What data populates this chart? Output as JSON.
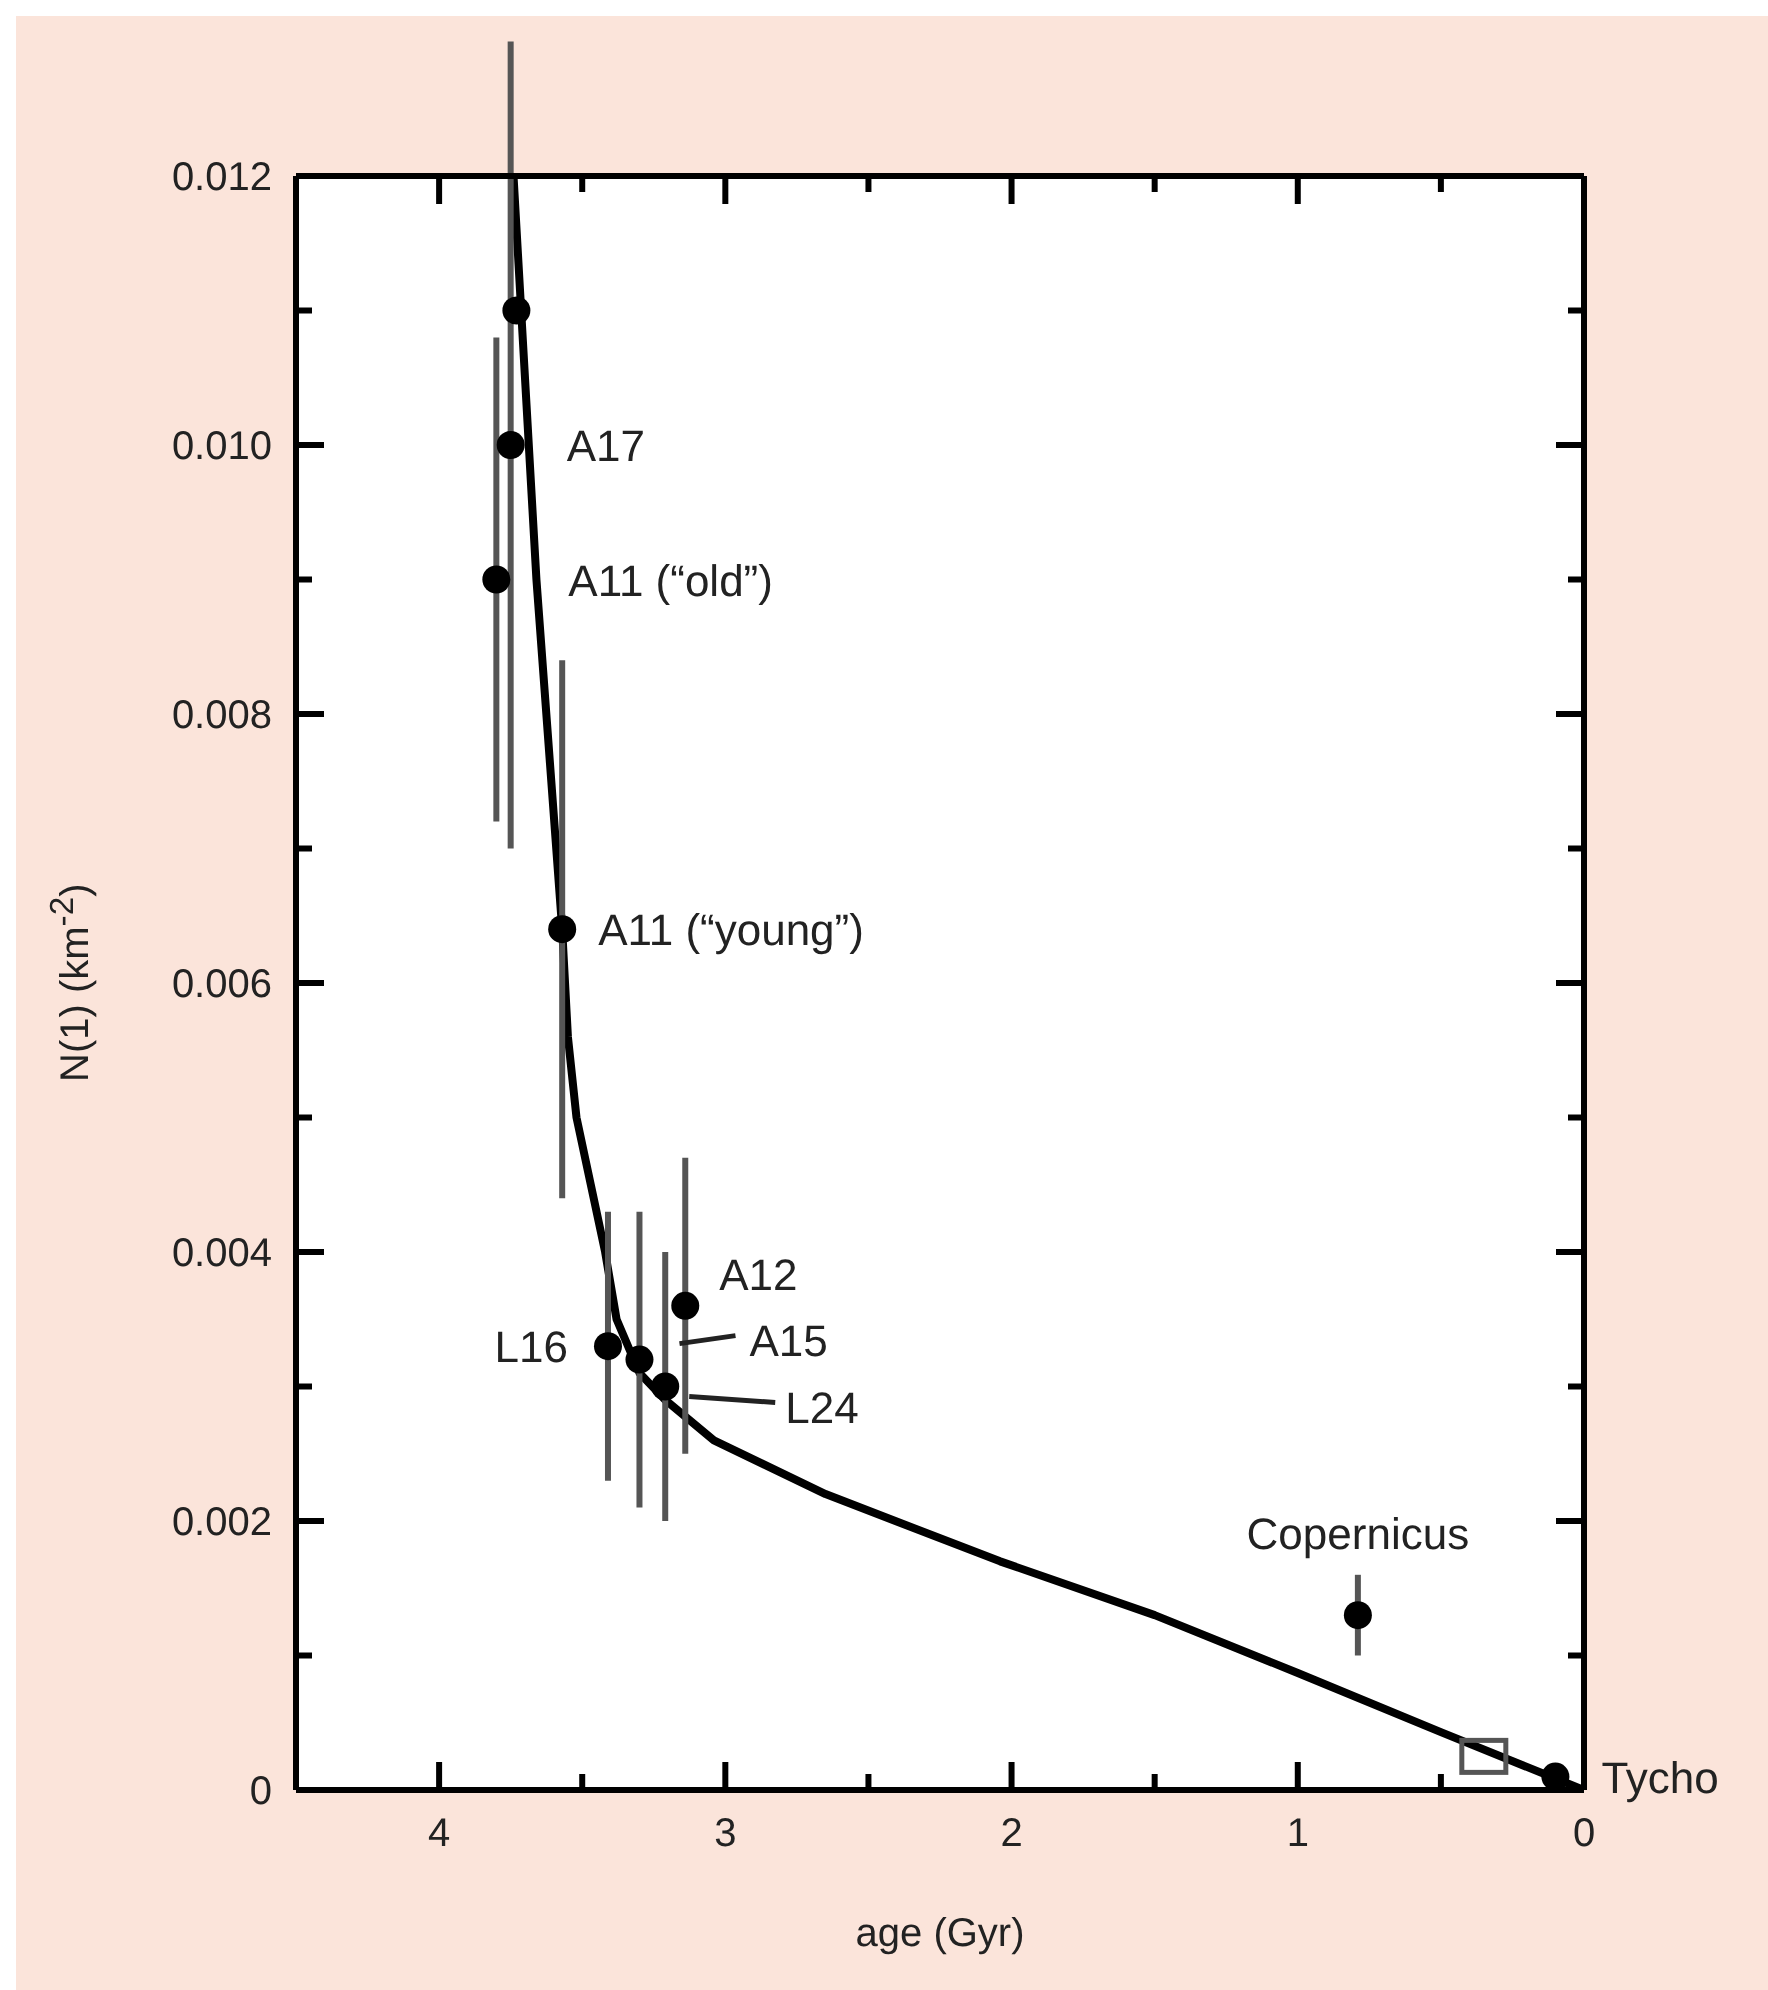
{
  "chart_data": {
    "type": "scatter",
    "xlabel": "age (Gyr)",
    "ylabel": "N(1) (km$^{-2}$)",
    "xlim": [
      4.5,
      0
    ],
    "xticks": [
      4,
      {
        "value": 3.5,
        "label": null
      },
      3,
      {
        "value": 2.5,
        "label": null
      },
      2,
      {
        "value": 1.5,
        "label": null
      },
      1,
      {
        "value": 0.5,
        "label": null
      },
      0
    ],
    "ylim": [
      0,
      0.012
    ],
    "yticks": [
      0,
      {
        "value": 0.001,
        "label": null
      },
      0.002,
      {
        "value": 0.003,
        "label": null
      },
      0.004,
      {
        "value": 0.005,
        "label": null
      },
      0.006,
      {
        "value": 0.007,
        "label": null
      },
      0.008,
      {
        "value": 0.009,
        "label": null
      },
      {
        "value": 0.01,
        "label": "0.010"
      },
      {
        "value": 0.011,
        "label": null
      },
      0.012
    ],
    "series": [
      {
        "type": "line",
        "color": "#000000",
        "marker": "none",
        "line_style": "solid",
        "x": [
          3.74,
          3.66,
          3.57,
          3.55,
          3.52,
          3.47,
          3.42,
          3.38,
          3.3,
          3.21,
          3.04,
          2.65,
          2.04,
          1.5,
          1,
          0.5,
          0
        ],
        "values": [
          0.012,
          0.009,
          0.0064,
          0.0056,
          0.005,
          0.0045,
          0.004,
          0.0035,
          0.0031,
          0.0029,
          0.0026,
          0.0022,
          0.0017,
          0.0013,
          0.00087,
          0.00043,
          0
        ]
      },
      {
        "color": "#000000",
        "marker": "circle",
        "x": [
          3.73,
          3.75,
          3.8,
          3.57,
          3.41,
          3.3,
          3.21,
          3.14,
          0.79,
          0.1
        ],
        "values": [
          0.011,
          0.01,
          0.009,
          0.0064,
          0.0033,
          0.0032,
          0.003,
          0.0036,
          0.0013,
          0.0001
        ],
        "errors": [
          null,
          0.003,
          0.0018,
          0.002,
          0.001,
          0.0011,
          0.001,
          0.0011,
          0.0003,
          null
        ]
      },
      {
        "color": "#555555",
        "marker": "square",
        "x": [
          0.35
        ],
        "values": [
          0.00025
        ]
      }
    ],
    "annotations": [
      {
        "text": "A17",
        "x": 3.75,
        "y": 0.01
      },
      {
        "text": "A11 (“old”)",
        "x": 3.8,
        "y": 0.009
      },
      {
        "text": "A11 (“young”)",
        "x": 3.57,
        "y": 0.0064
      },
      {
        "text": "A12",
        "x": 3.14,
        "y": 0.0036
      },
      {
        "text": "A15",
        "x": 3.3,
        "y": 0.0032
      },
      {
        "text": "L24",
        "x": 3.21,
        "y": 0.003
      },
      {
        "text": "L16",
        "x": 3.41,
        "y": 0.0033
      },
      {
        "text": "Copernicus",
        "x": 0.79,
        "y": 0.0013
      },
      {
        "text": "Tycho",
        "x": 0.1,
        "y": 0.0001
      }
    ]
  }
}
